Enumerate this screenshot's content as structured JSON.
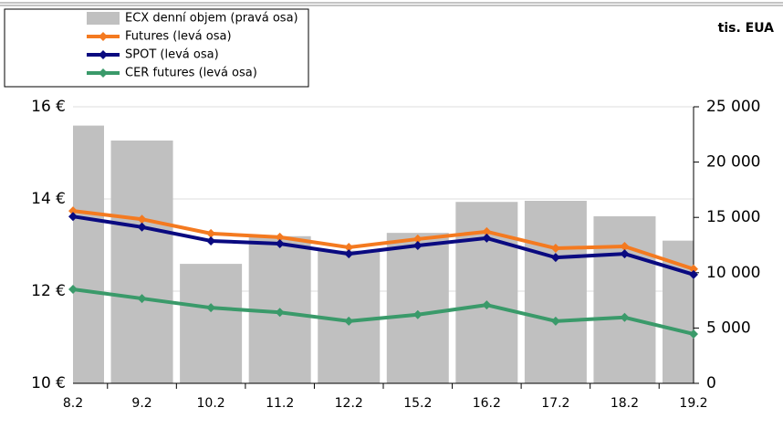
{
  "chart_data": {
    "type": "bar-line",
    "annotation": "tis. EUA",
    "categories": [
      "8.2",
      "9.2",
      "10.2",
      "11.2",
      "12.2",
      "15.2",
      "16.2",
      "17.2",
      "18.2",
      "19.2"
    ],
    "series": [
      {
        "name": "ECX denní objem (pravá osa)",
        "type": "bar",
        "axis": "y2",
        "color": "#c0c0c0",
        "values": [
          23300,
          21950,
          10800,
          13300,
          12000,
          13600,
          16400,
          16500,
          15100,
          12900
        ]
      },
      {
        "name": "Futures (levá osa)",
        "type": "line",
        "axis": "y",
        "color": "#f47a20",
        "values": [
          13.74,
          13.56,
          13.25,
          13.17,
          12.95,
          13.13,
          13.29,
          12.93,
          12.97,
          12.48
        ]
      },
      {
        "name": "SPOT (levá osa)",
        "type": "line",
        "axis": "y",
        "color": "#0a0a80",
        "values": [
          13.62,
          13.39,
          13.09,
          13.03,
          12.81,
          12.99,
          13.15,
          12.73,
          12.81,
          12.36
        ]
      },
      {
        "name": "CER futures (levá osa)",
        "type": "line",
        "axis": "y",
        "color": "#3a9a6a",
        "values": [
          12.04,
          11.84,
          11.64,
          11.54,
          11.35,
          11.49,
          11.7,
          11.35,
          11.43,
          11.07
        ]
      }
    ],
    "ylim": [
      10,
      16
    ],
    "yticks": [
      {
        "value": 10,
        "label": "10 €"
      },
      {
        "value": 12,
        "label": "12 €"
      },
      {
        "value": 14,
        "label": "14 €"
      },
      {
        "value": 16,
        "label": "16 €"
      }
    ],
    "y2lim": [
      0,
      25000
    ],
    "y2ticks": [
      0,
      {
        "value": 5000,
        "label": "5 000"
      },
      {
        "value": 10000,
        "label": "10 000"
      },
      {
        "value": 15000,
        "label": "15 000"
      },
      {
        "value": 20000,
        "label": "20 000"
      },
      {
        "value": 25000,
        "label": "25 000"
      }
    ],
    "grid": true,
    "legend": "top-left"
  }
}
